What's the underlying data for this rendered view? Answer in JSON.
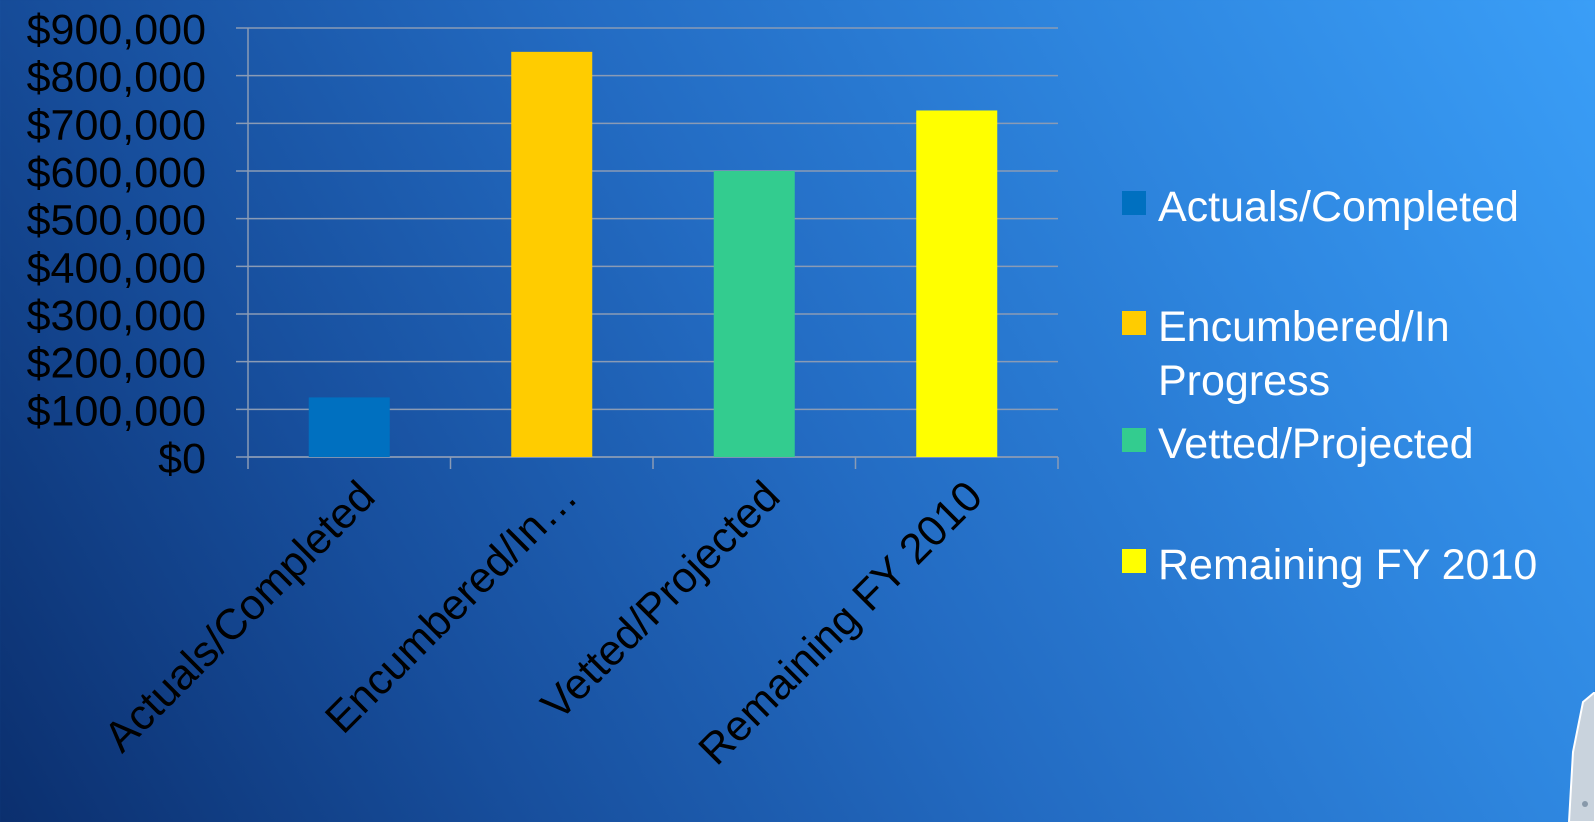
{
  "chart_data": {
    "type": "bar",
    "categories": [
      "Actuals/Completed",
      "Encumbered/In…",
      "Vetted/Projected",
      "Remaining FY 2010"
    ],
    "series": [
      {
        "name": "Actuals/Completed",
        "category": "Actuals/Completed",
        "value": 125000,
        "color": "#0070c0"
      },
      {
        "name": "Encumbered/In Progress",
        "category": "Encumbered/In…",
        "value": 850000,
        "color": "#ffcc00"
      },
      {
        "name": "Vetted/Projected",
        "category": "Vetted/Projected",
        "value": 600000,
        "color": "#33cc8f"
      },
      {
        "name": "Remaining FY 2010",
        "category": "Remaining FY 2010",
        "value": 727000,
        "color": "#ffff00"
      }
    ],
    "ylim": [
      0,
      900000
    ],
    "yticks": [
      0,
      100000,
      200000,
      300000,
      400000,
      500000,
      600000,
      700000,
      800000,
      900000
    ],
    "ytick_labels": [
      "$0",
      "$100,000",
      "$200,000",
      "$300,000",
      "$400,000",
      "$500,000",
      "$600,000",
      "$700,000",
      "$800,000",
      "$900,000"
    ],
    "grid": true,
    "legend_position": "right",
    "title": "",
    "xlabel": "",
    "ylabel": ""
  },
  "colors": {
    "gridline": "#8a9bb5",
    "axis": "#8a9bb5",
    "text": "#000000",
    "legend_text": "#ffffff"
  }
}
